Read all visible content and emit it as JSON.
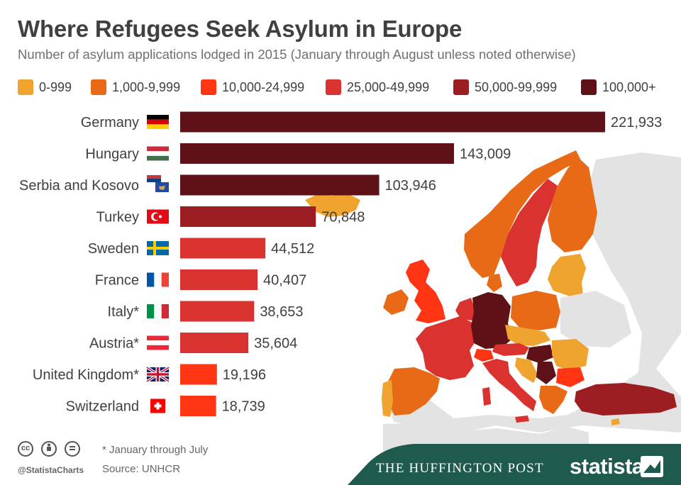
{
  "header": {
    "title": "Where Refugees Seek Asylum in Europe",
    "subtitle": "Number of asylum applications lodged in 2015 (January through August unless noted otherwise)"
  },
  "legend": {
    "items": [
      {
        "label": "0-999",
        "color": "#f0a430"
      },
      {
        "label": "1,000-9,999",
        "color": "#e86a16"
      },
      {
        "label": "10,000-24,999",
        "color": "#ff3513"
      },
      {
        "label": "25,000-49,999",
        "color": "#d9322f"
      },
      {
        "label": "50,000-99,999",
        "color": "#9c1e22"
      },
      {
        "label": "100,000+",
        "color": "#5e1116"
      }
    ]
  },
  "chart_data": {
    "type": "bar",
    "orientation": "horizontal",
    "title": "Where Refugees Seek Asylum in Europe",
    "subtitle": "Number of asylum applications lodged in 2015 (January through August unless noted otherwise)",
    "xlabel": "",
    "ylabel": "",
    "xlim": [
      0,
      221933
    ],
    "categories": [
      "Germany",
      "Hungary",
      "Serbia and Kosovo",
      "Turkey",
      "Sweden",
      "France",
      "Italy*",
      "Austria*",
      "United Kingdom*",
      "Switzerland"
    ],
    "values": [
      221933,
      143009,
      103946,
      70848,
      44512,
      40407,
      38653,
      35604,
      19196,
      18739
    ],
    "value_labels": [
      "221,933",
      "143,009",
      "103,946",
      "70,848",
      "44,512",
      "40,407",
      "38,653",
      "35,604",
      "19,196",
      "18,739"
    ],
    "flags": [
      "germany-flag",
      "hungary-flag",
      "serbia-kosovo-flag",
      "turkey-flag",
      "sweden-flag",
      "france-flag",
      "italy-flag",
      "austria-flag",
      "uk-flag",
      "switzerland-flag"
    ],
    "grid": false,
    "legend_position": "top"
  },
  "footer": {
    "handle": "@StatistaCharts",
    "note": "* January through July",
    "source": "Source: UNHCR",
    "partner": "THE HUFFINGTON POST",
    "brand": "statista",
    "icons": [
      "cc-icon",
      "by-icon",
      "nd-icon"
    ]
  }
}
